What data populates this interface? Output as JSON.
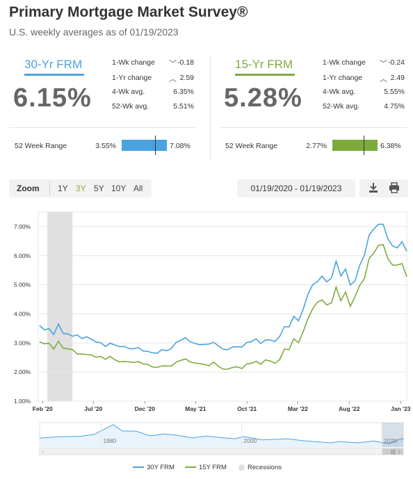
{
  "header": {
    "title": "Primary Mortgage Market Survey®",
    "subtitle": "U.S. weekly averages as of 01/19/2023"
  },
  "colors": {
    "frm30": "#4aa3df",
    "frm15": "#7cab3c",
    "recession": "#e0e0e0",
    "grid": "#e6e6e6"
  },
  "panels": [
    {
      "name": "30-Yr FRM",
      "rate": "6.15%",
      "color": "#4aa3df",
      "stats": [
        {
          "label": "1-Wk change",
          "arrow": "down",
          "value": "-0.18"
        },
        {
          "label": "1-Yr change",
          "arrow": "up",
          "value": "2.59"
        },
        {
          "label": "4-Wk avg.",
          "arrow": "",
          "value": "6.35%"
        },
        {
          "label": "52-Wk avg.",
          "arrow": "",
          "value": "5.51%"
        }
      ],
      "range_label": "52 Week Range",
      "range_min": "3.55%",
      "range_max": "7.08%",
      "range_current_fraction": 0.74
    },
    {
      "name": "15-Yr FRM",
      "rate": "5.28%",
      "color": "#7cab3c",
      "stats": [
        {
          "label": "1-Wk change",
          "arrow": "down",
          "value": "-0.24"
        },
        {
          "label": "1-Yr change",
          "arrow": "up",
          "value": "2.49"
        },
        {
          "label": "4-Wk avg.",
          "arrow": "",
          "value": "5.55%"
        },
        {
          "label": "52-Wk avg.",
          "arrow": "",
          "value": "4.75%"
        }
      ],
      "range_label": "52 Week Range",
      "range_min": "2.77%",
      "range_max": "6.38%",
      "range_current_fraction": 0.69
    }
  ],
  "toolbar": {
    "zoom_label": "Zoom",
    "buttons": [
      "1Y",
      "3Y",
      "5Y",
      "10Y",
      "All"
    ],
    "active": "3Y",
    "date_range": "01/19/2020 - 01/19/2023",
    "download_icon": "download-icon",
    "print_icon": "print-icon"
  },
  "chart_data": {
    "type": "line",
    "title": "",
    "xlabel": "",
    "ylabel": "",
    "ylim": [
      1,
      7.5
    ],
    "y_ticks": [
      "1.00%",
      "2.00%",
      "3.00%",
      "4.00%",
      "5.00%",
      "6.00%",
      "7.00%"
    ],
    "x_ticks": [
      "Feb '20",
      "Jul '20",
      "Dec '20",
      "May '21",
      "Oct '21",
      "Mar '22",
      "Aug '22",
      "Jan '23"
    ],
    "x_tick_dates": [
      "2020-02-01",
      "2020-07-01",
      "2020-12-01",
      "2021-05-01",
      "2021-10-01",
      "2022-03-01",
      "2022-08-01",
      "2023-01-01"
    ],
    "xlim": [
      "2020-01-19",
      "2023-01-19"
    ],
    "grid": true,
    "legend_position": "bottom",
    "recessions": [
      {
        "start": "2020-02-15",
        "end": "2020-04-30"
      }
    ],
    "series": [
      {
        "name": "30Y FRM",
        "color": "#4aa3df",
        "points": [
          [
            "2020-01-23",
            3.6
          ],
          [
            "2020-02-06",
            3.45
          ],
          [
            "2020-02-20",
            3.49
          ],
          [
            "2020-03-05",
            3.29
          ],
          [
            "2020-03-19",
            3.65
          ],
          [
            "2020-04-02",
            3.33
          ],
          [
            "2020-04-16",
            3.31
          ],
          [
            "2020-04-30",
            3.23
          ],
          [
            "2020-05-14",
            3.28
          ],
          [
            "2020-05-28",
            3.15
          ],
          [
            "2020-06-11",
            3.21
          ],
          [
            "2020-06-25",
            3.13
          ],
          [
            "2020-07-09",
            3.03
          ],
          [
            "2020-07-23",
            3.01
          ],
          [
            "2020-08-06",
            2.88
          ],
          [
            "2020-08-20",
            2.99
          ],
          [
            "2020-09-03",
            2.93
          ],
          [
            "2020-09-17",
            2.87
          ],
          [
            "2020-10-01",
            2.88
          ],
          [
            "2020-10-15",
            2.81
          ],
          [
            "2020-10-29",
            2.8
          ],
          [
            "2020-11-12",
            2.84
          ],
          [
            "2020-11-26",
            2.72
          ],
          [
            "2020-12-10",
            2.71
          ],
          [
            "2020-12-24",
            2.66
          ],
          [
            "2021-01-07",
            2.65
          ],
          [
            "2021-01-21",
            2.77
          ],
          [
            "2021-02-04",
            2.73
          ],
          [
            "2021-02-18",
            2.81
          ],
          [
            "2021-03-04",
            3.02
          ],
          [
            "2021-03-18",
            3.09
          ],
          [
            "2021-04-01",
            3.18
          ],
          [
            "2021-04-15",
            3.04
          ],
          [
            "2021-04-29",
            2.98
          ],
          [
            "2021-05-13",
            2.94
          ],
          [
            "2021-05-27",
            2.95
          ],
          [
            "2021-06-10",
            2.96
          ],
          [
            "2021-06-24",
            3.02
          ],
          [
            "2021-07-08",
            2.9
          ],
          [
            "2021-07-22",
            2.78
          ],
          [
            "2021-08-05",
            2.77
          ],
          [
            "2021-08-19",
            2.86
          ],
          [
            "2021-09-02",
            2.87
          ],
          [
            "2021-09-16",
            2.86
          ],
          [
            "2021-09-30",
            3.01
          ],
          [
            "2021-10-14",
            3.05
          ],
          [
            "2021-10-28",
            3.14
          ],
          [
            "2021-11-11",
            2.98
          ],
          [
            "2021-11-25",
            3.1
          ],
          [
            "2021-12-09",
            3.1
          ],
          [
            "2021-12-23",
            3.05
          ],
          [
            "2022-01-06",
            3.22
          ],
          [
            "2022-01-20",
            3.56
          ],
          [
            "2022-02-03",
            3.55
          ],
          [
            "2022-02-17",
            3.92
          ],
          [
            "2022-03-03",
            3.76
          ],
          [
            "2022-03-17",
            4.16
          ],
          [
            "2022-03-31",
            4.67
          ],
          [
            "2022-04-14",
            5.0
          ],
          [
            "2022-04-28",
            5.1
          ],
          [
            "2022-05-12",
            5.3
          ],
          [
            "2022-05-26",
            5.1
          ],
          [
            "2022-06-09",
            5.23
          ],
          [
            "2022-06-23",
            5.81
          ],
          [
            "2022-07-07",
            5.3
          ],
          [
            "2022-07-21",
            5.54
          ],
          [
            "2022-08-04",
            4.99
          ],
          [
            "2022-08-18",
            5.13
          ],
          [
            "2022-09-01",
            5.66
          ],
          [
            "2022-09-15",
            6.02
          ],
          [
            "2022-09-29",
            6.7
          ],
          [
            "2022-10-13",
            6.92
          ],
          [
            "2022-10-27",
            7.08
          ],
          [
            "2022-11-10",
            7.08
          ],
          [
            "2022-11-24",
            6.58
          ],
          [
            "2022-12-08",
            6.33
          ],
          [
            "2022-12-22",
            6.27
          ],
          [
            "2023-01-05",
            6.48
          ],
          [
            "2023-01-19",
            6.15
          ]
        ]
      },
      {
        "name": "15Y FRM",
        "color": "#7cab3c",
        "points": [
          [
            "2020-01-23",
            3.04
          ],
          [
            "2020-02-06",
            2.97
          ],
          [
            "2020-02-20",
            2.99
          ],
          [
            "2020-03-05",
            2.79
          ],
          [
            "2020-03-19",
            3.06
          ],
          [
            "2020-04-02",
            2.82
          ],
          [
            "2020-04-16",
            2.8
          ],
          [
            "2020-04-30",
            2.77
          ],
          [
            "2020-05-14",
            2.62
          ],
          [
            "2020-05-28",
            2.62
          ],
          [
            "2020-06-11",
            2.6
          ],
          [
            "2020-06-25",
            2.59
          ],
          [
            "2020-07-09",
            2.51
          ],
          [
            "2020-07-23",
            2.54
          ],
          [
            "2020-08-06",
            2.44
          ],
          [
            "2020-08-20",
            2.54
          ],
          [
            "2020-09-03",
            2.42
          ],
          [
            "2020-09-17",
            2.35
          ],
          [
            "2020-10-01",
            2.36
          ],
          [
            "2020-10-15",
            2.35
          ],
          [
            "2020-10-29",
            2.33
          ],
          [
            "2020-11-12",
            2.36
          ],
          [
            "2020-11-26",
            2.28
          ],
          [
            "2020-12-10",
            2.26
          ],
          [
            "2020-12-24",
            2.17
          ],
          [
            "2021-01-07",
            2.16
          ],
          [
            "2021-01-21",
            2.21
          ],
          [
            "2021-02-04",
            2.21
          ],
          [
            "2021-02-18",
            2.21
          ],
          [
            "2021-03-04",
            2.34
          ],
          [
            "2021-03-18",
            2.4
          ],
          [
            "2021-04-01",
            2.45
          ],
          [
            "2021-04-15",
            2.35
          ],
          [
            "2021-04-29",
            2.31
          ],
          [
            "2021-05-13",
            2.29
          ],
          [
            "2021-05-27",
            2.26
          ],
          [
            "2021-06-10",
            2.22
          ],
          [
            "2021-06-24",
            2.34
          ],
          [
            "2021-07-08",
            2.2
          ],
          [
            "2021-07-22",
            2.1
          ],
          [
            "2021-08-05",
            2.1
          ],
          [
            "2021-08-19",
            2.16
          ],
          [
            "2021-09-02",
            2.18
          ],
          [
            "2021-09-16",
            2.12
          ],
          [
            "2021-09-30",
            2.28
          ],
          [
            "2021-10-14",
            2.3
          ],
          [
            "2021-10-28",
            2.37
          ],
          [
            "2021-11-11",
            2.27
          ],
          [
            "2021-11-25",
            2.42
          ],
          [
            "2021-12-09",
            2.38
          ],
          [
            "2021-12-23",
            2.3
          ],
          [
            "2022-01-06",
            2.43
          ],
          [
            "2022-01-20",
            2.79
          ],
          [
            "2022-02-03",
            2.77
          ],
          [
            "2022-02-17",
            3.14
          ],
          [
            "2022-03-03",
            3.01
          ],
          [
            "2022-03-17",
            3.39
          ],
          [
            "2022-03-31",
            3.83
          ],
          [
            "2022-04-14",
            4.17
          ],
          [
            "2022-04-28",
            4.4
          ],
          [
            "2022-05-12",
            4.48
          ],
          [
            "2022-05-26",
            4.31
          ],
          [
            "2022-06-09",
            4.38
          ],
          [
            "2022-06-23",
            4.92
          ],
          [
            "2022-07-07",
            4.45
          ],
          [
            "2022-07-21",
            4.75
          ],
          [
            "2022-08-04",
            4.26
          ],
          [
            "2022-08-18",
            4.58
          ],
          [
            "2022-09-01",
            4.98
          ],
          [
            "2022-09-15",
            5.21
          ],
          [
            "2022-09-29",
            5.9
          ],
          [
            "2022-10-13",
            6.09
          ],
          [
            "2022-10-27",
            6.36
          ],
          [
            "2022-11-10",
            6.38
          ],
          [
            "2022-11-24",
            5.9
          ],
          [
            "2022-12-08",
            5.67
          ],
          [
            "2022-12-22",
            5.68
          ],
          [
            "2023-01-05",
            5.73
          ],
          [
            "2023-01-19",
            5.28
          ]
        ]
      }
    ],
    "navigator": {
      "labels": [
        "1980",
        "2000",
        "2020"
      ],
      "label_dates": [
        "1980-01-01",
        "2000-01-01",
        "2020-01-01"
      ],
      "xlim": [
        "1971-04-01",
        "2023-01-19"
      ],
      "selected_range": [
        "2020-01-19",
        "2023-01-19"
      ],
      "points": [
        [
          "1971-04-01",
          7.3
        ],
        [
          "1974-01-01",
          8.5
        ],
        [
          "1977-01-01",
          8.8
        ],
        [
          "1979-01-01",
          10.4
        ],
        [
          "1981-10-01",
          18.4
        ],
        [
          "1983-01-01",
          13.2
        ],
        [
          "1985-01-01",
          13.0
        ],
        [
          "1987-01-01",
          9.2
        ],
        [
          "1989-01-01",
          10.7
        ],
        [
          "1991-01-01",
          9.6
        ],
        [
          "1993-01-01",
          7.5
        ],
        [
          "1995-01-01",
          9.1
        ],
        [
          "1997-01-01",
          7.8
        ],
        [
          "1999-01-01",
          6.8
        ],
        [
          "2000-06-01",
          8.6
        ],
        [
          "2003-01-01",
          5.9
        ],
        [
          "2006-07-01",
          6.8
        ],
        [
          "2009-01-01",
          5.1
        ],
        [
          "2012-11-01",
          3.4
        ],
        [
          "2014-01-01",
          4.5
        ],
        [
          "2016-07-01",
          3.4
        ],
        [
          "2018-11-01",
          4.9
        ],
        [
          "2021-01-01",
          2.7
        ],
        [
          "2022-11-01",
          7.1
        ],
        [
          "2023-01-19",
          6.15
        ]
      ]
    }
  },
  "legend": {
    "items": [
      "30Y FRM",
      "15Y FRM",
      "Recessions"
    ]
  }
}
